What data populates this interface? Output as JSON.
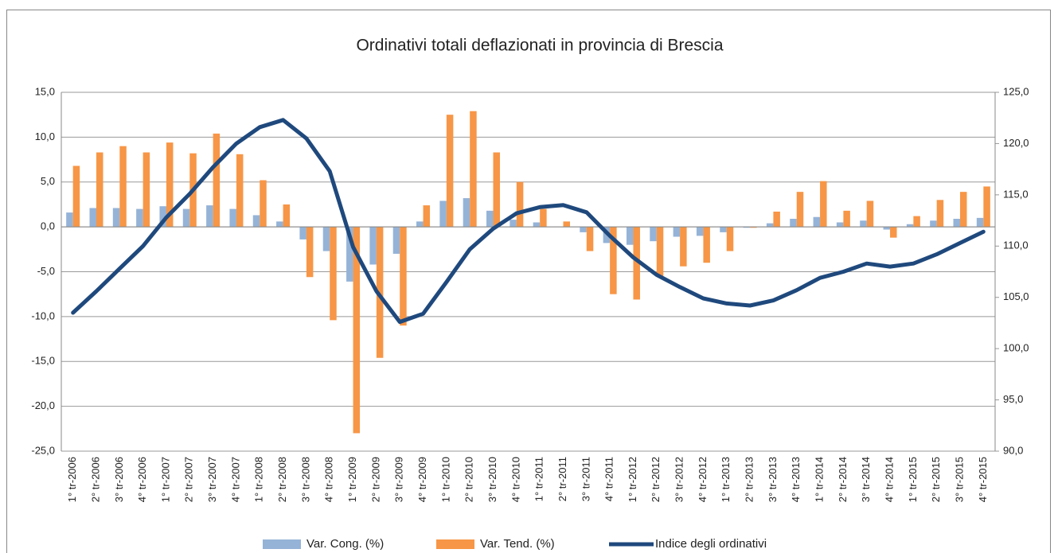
{
  "chart_data": {
    "type": "bar",
    "title": "Ordinativi totali deflazionati in provincia di Brescia",
    "categories": [
      "1° tr-2006",
      "2° tr-2006",
      "3° tr-2006",
      "4° tr-2006",
      "1° tr-2007",
      "2° tr-2007",
      "3° tr-2007",
      "4° tr-2007",
      "1° tr-2008",
      "2° tr-2008",
      "3° tr-2008",
      "4° tr-2008",
      "1° tr-2009",
      "2° tr-2009",
      "3° tr-2009",
      "4° tr-2009",
      "1° tr-2010",
      "2° tr-2010",
      "3° tr-2010",
      "4° tr-2010",
      "1° tr-2011",
      "2° tr-2011",
      "3° tr-2011",
      "4° tr-2011",
      "1° tr-2012",
      "2° tr-2012",
      "3° tr-2012",
      "4° tr-2012",
      "1° tr-2013",
      "2° tr-2013",
      "3° tr-2013",
      "4° tr-2013",
      "1° tr-2014",
      "2° tr-2014",
      "3° tr-2014",
      "4° tr-2014",
      "1° tr-2015",
      "2° tr-2015",
      "3° tr-2015",
      "4° tr-2015"
    ],
    "series": [
      {
        "name": "Var. Cong. (%)",
        "color": "#95b3d7",
        "type": "bar",
        "values": [
          1.6,
          2.1,
          2.1,
          2.0,
          2.3,
          2.0,
          2.4,
          2.0,
          1.3,
          0.6,
          -1.4,
          -2.7,
          -6.1,
          -4.2,
          -3.0,
          0.6,
          2.9,
          3.2,
          1.8,
          0.8,
          0.5,
          0.0,
          -0.6,
          -1.8,
          -2.0,
          -1.6,
          -1.1,
          -1.0,
          -0.6,
          -0.1,
          0.4,
          0.9,
          1.1,
          0.5,
          0.7,
          -0.3,
          0.3,
          0.7,
          0.9,
          1.0
        ]
      },
      {
        "name": "Var. Tend. (%)",
        "color": "#f79646",
        "type": "bar",
        "values": [
          6.8,
          8.3,
          9.0,
          8.3,
          9.4,
          8.2,
          10.4,
          8.1,
          5.2,
          2.5,
          -5.6,
          -10.4,
          -23.0,
          -14.6,
          -11.0,
          2.4,
          12.5,
          12.9,
          8.3,
          5.0,
          2.0,
          0.6,
          -2.7,
          -7.5,
          -8.1,
          -5.5,
          -4.4,
          -4.0,
          -2.7,
          -0.1,
          1.7,
          3.9,
          5.1,
          1.8,
          2.9,
          -1.2,
          1.2,
          3.0,
          3.9,
          4.5
        ]
      },
      {
        "name": "Indice degli ordinativi",
        "color": "#1f497d",
        "type": "line",
        "axis": "y2",
        "values": [
          103.5,
          105.6,
          107.8,
          110.0,
          112.8,
          115.1,
          117.7,
          120.0,
          121.6,
          122.3,
          120.5,
          117.3,
          109.9,
          105.6,
          102.6,
          103.4,
          106.5,
          109.7,
          111.7,
          113.2,
          113.8,
          114.0,
          113.3,
          111.0,
          108.9,
          107.2,
          106.0,
          104.9,
          104.4,
          104.2,
          104.7,
          105.7,
          106.9,
          107.5,
          108.3,
          108.0,
          108.3,
          109.2,
          110.3,
          111.4
        ]
      }
    ],
    "ylim": [
      -25,
      15
    ],
    "yticks": [
      {
        "value": -25,
        "label": "-25,0"
      },
      {
        "value": -20,
        "label": "-20,0"
      },
      {
        "value": -15,
        "label": "-15,0"
      },
      {
        "value": -10,
        "label": "-10,0"
      },
      {
        "value": -5,
        "label": "-5,0"
      },
      {
        "value": 0,
        "label": "0,0"
      },
      {
        "value": 5,
        "label": "5,0"
      },
      {
        "value": 10,
        "label": "10,0"
      },
      {
        "value": 15,
        "label": "15,0"
      }
    ],
    "y2lim": [
      90,
      125
    ],
    "y2ticks": [
      {
        "value": 90,
        "label": "90,0"
      },
      {
        "value": 95,
        "label": "95,0"
      },
      {
        "value": 100,
        "label": "100,0"
      },
      {
        "value": 105,
        "label": "105,0"
      },
      {
        "value": 110,
        "label": "110,0"
      },
      {
        "value": 115,
        "label": "115,0"
      },
      {
        "value": 120,
        "label": "120,0"
      },
      {
        "value": 125,
        "label": "125,0"
      }
    ],
    "grid": true,
    "legend": "bottom"
  }
}
